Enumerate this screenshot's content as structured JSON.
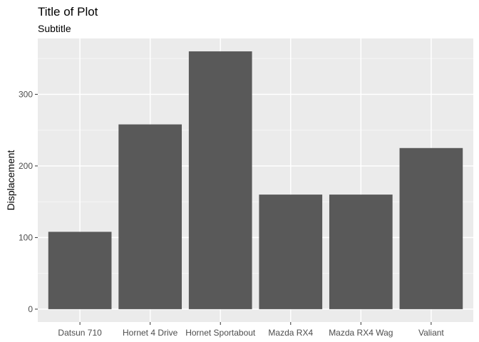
{
  "chart_data": {
    "type": "bar",
    "title": "Title of Plot",
    "subtitle": "Subtitle",
    "xlabel": "",
    "ylabel": "Displacement",
    "categories": [
      "Datsun 710",
      "Hornet 4 Drive",
      "Hornet Sportabout",
      "Mazda RX4",
      "Mazda RX4 Wag",
      "Valiant"
    ],
    "values": [
      108,
      258,
      360,
      160,
      160,
      225
    ],
    "ylim": [
      -18,
      378
    ],
    "yticks": [
      0,
      100,
      200,
      300
    ],
    "ytick_labels": [
      "0",
      "100",
      "200",
      "300"
    ],
    "grid": true,
    "legend": "none",
    "colors": {
      "bar": "#595959",
      "panel_background": "#ebebeb",
      "grid_major": "#ffffff",
      "grid_minor": "#f5f5f5",
      "tick_mark": "#333333"
    }
  }
}
